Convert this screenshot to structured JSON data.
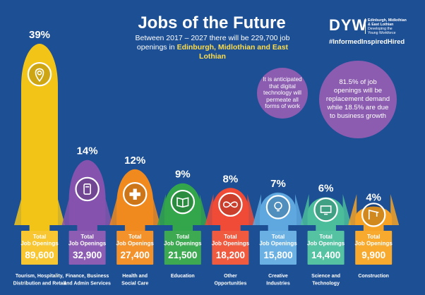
{
  "header": {
    "title": "Jobs of the Future",
    "subtitle_line1": "Between 2017 – 2027 there will be 229,700 job",
    "subtitle_line2_plain": "openings in ",
    "subtitle_line2_highlight": "Edinburgh, Midlothian and East Lothian"
  },
  "brand": {
    "mark": "DYW",
    "line1": "Edinburgh, Midlothian",
    "line2": "& East Lothian",
    "line3": "Developing the",
    "line4": "Young Workforce",
    "hashtag": "#InformedInspiredHired"
  },
  "callouts": {
    "digital": "It is anticipated that digital technology will permeate all forms of work",
    "replacement": "81.5% of job openings will be replacement demand while 18.5% are due to business growth"
  },
  "box_label_line1": "Total",
  "box_label_line2": "Job Openings",
  "colors": {
    "background": "#1d4f95",
    "highlight": "#ffde4a",
    "bubble": "#8b5cb0"
  },
  "chart_data": {
    "type": "bar",
    "title": "Jobs of the Future",
    "ylim": [
      0,
      39
    ],
    "categories": [
      [
        "Tourism, Hospitality,",
        "Distribution and Retail"
      ],
      [
        "Finance, Business",
        "and Admin Services"
      ],
      [
        "Health and",
        "Social Care"
      ],
      [
        "Education"
      ],
      [
        "Other",
        "Opportunities"
      ],
      [
        "Creative",
        "Industries"
      ],
      [
        "Science and",
        "Technology"
      ],
      [
        "Construction"
      ]
    ],
    "percent_labels": [
      "39%",
      "14%",
      "12%",
      "9%",
      "8%",
      "7%",
      "6%",
      "4%"
    ],
    "share_percent": [
      39,
      14,
      12,
      9,
      8,
      7,
      6,
      4
    ],
    "total_job_openings_labels": [
      "89,600",
      "32,900",
      "27,400",
      "21,500",
      "18,200",
      "15,800",
      "14,400",
      "9,900"
    ],
    "total_job_openings": [
      89600,
      32900,
      27400,
      21500,
      18200,
      15800,
      14400,
      9900
    ],
    "colors": [
      "#f2c417",
      "#8553ad",
      "#f08a1e",
      "#33a54a",
      "#ef4b36",
      "#5fa8df",
      "#4bbd9a",
      "#f6a224"
    ],
    "box_colors": [
      "#f7c630",
      "#8d5db4",
      "#f3922b",
      "#3daa52",
      "#f05a3f",
      "#6ab0e2",
      "#55c2a2",
      "#f8aa2e"
    ],
    "icons": [
      "location-pin-icon",
      "calculator-icon",
      "medical-cross-icon",
      "book-icon",
      "infinity-icon",
      "lightbulb-icon",
      "monitor-icon",
      "crane-icon"
    ]
  }
}
